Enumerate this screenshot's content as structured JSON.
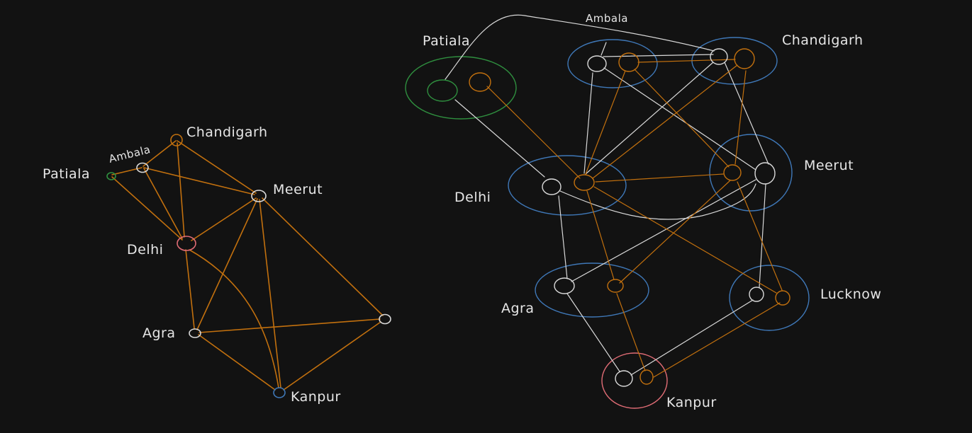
{
  "colors": {
    "background": "#121212",
    "white": "#d9d9d9",
    "orange": "#c2700e",
    "green": "#2f8f3f",
    "blue": "#3f78b8",
    "red": "#e06c75",
    "text": "#e6e6e6"
  },
  "left_graph": {
    "labels": {
      "patiala": "Patiala",
      "ambala": "Ambala",
      "chandigarh": "Chandigarh",
      "meerut": "Meerut",
      "delhi": "Delhi",
      "agra": "Agra",
      "kanpur": "Kanpur"
    }
  },
  "right_graph": {
    "labels": {
      "patiala": "Patiala",
      "ambala": "Ambala",
      "chandigarh": "Chandigarh",
      "meerut": "Meerut",
      "delhi": "Delhi",
      "agra": "Agra",
      "lucknow": "Lucknow",
      "kanpur": "Kanpur"
    }
  }
}
